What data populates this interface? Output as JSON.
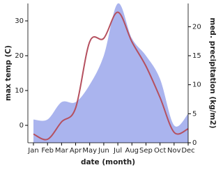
{
  "chart_data": {
    "type": "line",
    "x_label": "date (month)",
    "y_label": "max temp (C)",
    "y2_label": "med. precipitation (kg/m2)",
    "categories": [
      "Jan",
      "Feb",
      "Mar",
      "Apr",
      "May",
      "Jun",
      "Jul",
      "Aug",
      "Sep",
      "Oct",
      "Nov",
      "Dec"
    ],
    "series": [
      {
        "name": "max temp",
        "color": "#b5505f",
        "values": [
          -2.5,
          -4,
          1,
          5,
          24,
          25,
          32.5,
          24,
          17,
          8,
          -2,
          -1
        ]
      },
      {
        "name": "precipitation",
        "color": "#aab4ee",
        "axis": "y2",
        "values": [
          4,
          4,
          7,
          7,
          10,
          15,
          24,
          18,
          15,
          11,
          3,
          5
        ]
      }
    ],
    "ylim": [
      -5,
      35
    ],
    "yticks": [
      0,
      10,
      20,
      30
    ],
    "y2lim": [
      0,
      24
    ],
    "y2ticks": [
      0,
      5,
      10,
      15,
      20
    ]
  }
}
